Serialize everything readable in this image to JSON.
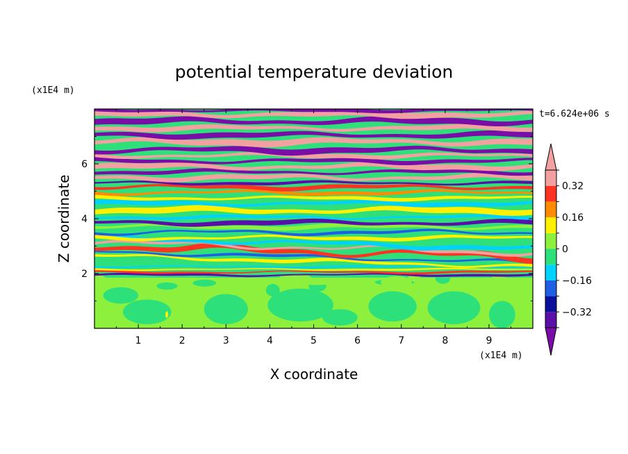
{
  "chart_data": {
    "type": "heatmap",
    "title": "potential temperature deviation",
    "xlabel": "X coordinate",
    "ylabel": "Z coordinate",
    "x_unit": "(x1E4 m)",
    "y_unit": "(x1E4 m)",
    "time_label": "t=6.624e+06 s",
    "xlim": [
      0,
      10
    ],
    "ylim": [
      0,
      8
    ],
    "x_ticks": [
      1,
      2,
      3,
      4,
      5,
      6,
      7,
      8,
      9
    ],
    "y_ticks": [
      2,
      4,
      6
    ],
    "colorbar": {
      "levels": [
        -0.4,
        -0.32,
        -0.24,
        -0.16,
        -0.08,
        0,
        0.08,
        0.16,
        0.24,
        0.32,
        0.4
      ],
      "labels": [
        "0.32",
        "0.16",
        "0",
        "−0.16",
        "−0.32"
      ],
      "label_values": [
        0.32,
        0.16,
        0,
        -0.16,
        -0.32
      ],
      "colors": [
        "#7a0da8",
        "#5a0fa8",
        "#0a0f9c",
        "#1f5fe6",
        "#00d2ff",
        "#2ee07a",
        "#8cf03c",
        "#fff000",
        "#ff8c00",
        "#ff3322",
        "#f2a0a0"
      ],
      "extend": "both"
    },
    "bands": [
      {
        "z": [
          0,
          1.85
        ],
        "class": "green-mix"
      },
      {
        "z": [
          1.85,
          2.3
        ],
        "class": "thin-layers"
      },
      {
        "z": [
          2.3,
          4.2
        ],
        "class": "mixed"
      },
      {
        "z": [
          4.2,
          5.5
        ],
        "class": "cyan-yellow"
      },
      {
        "z": [
          5.5,
          8
        ],
        "class": "purple-pink"
      }
    ]
  }
}
